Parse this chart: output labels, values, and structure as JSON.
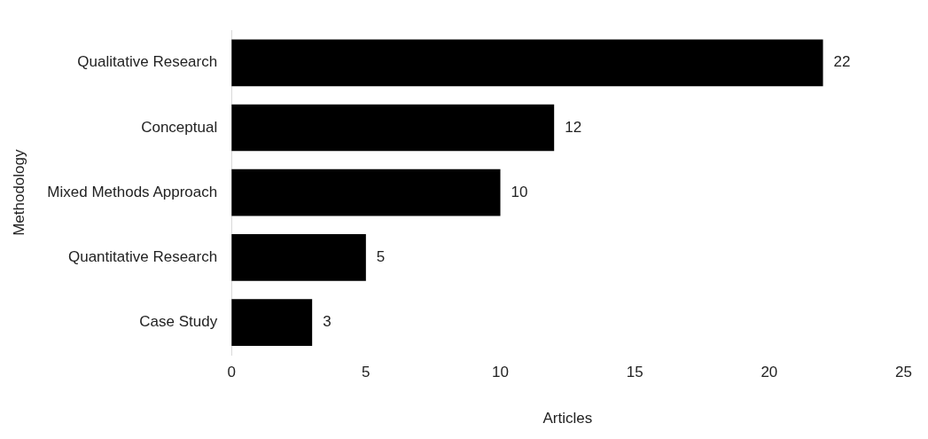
{
  "chart_data": {
    "type": "bar",
    "orientation": "horizontal",
    "xlabel": "Articles",
    "ylabel": "Methodology",
    "categories": [
      "Qualitative Research",
      "Conceptual",
      "Mixed Methods Approach",
      "Quantitative Research",
      "Case Study"
    ],
    "values": [
      22,
      12,
      10,
      5,
      3
    ],
    "color": "#000000",
    "xlim": [
      0,
      25
    ],
    "xticks": [
      0,
      5,
      10,
      15,
      20,
      25
    ],
    "grid": false,
    "legend": false,
    "data_labels": true
  }
}
